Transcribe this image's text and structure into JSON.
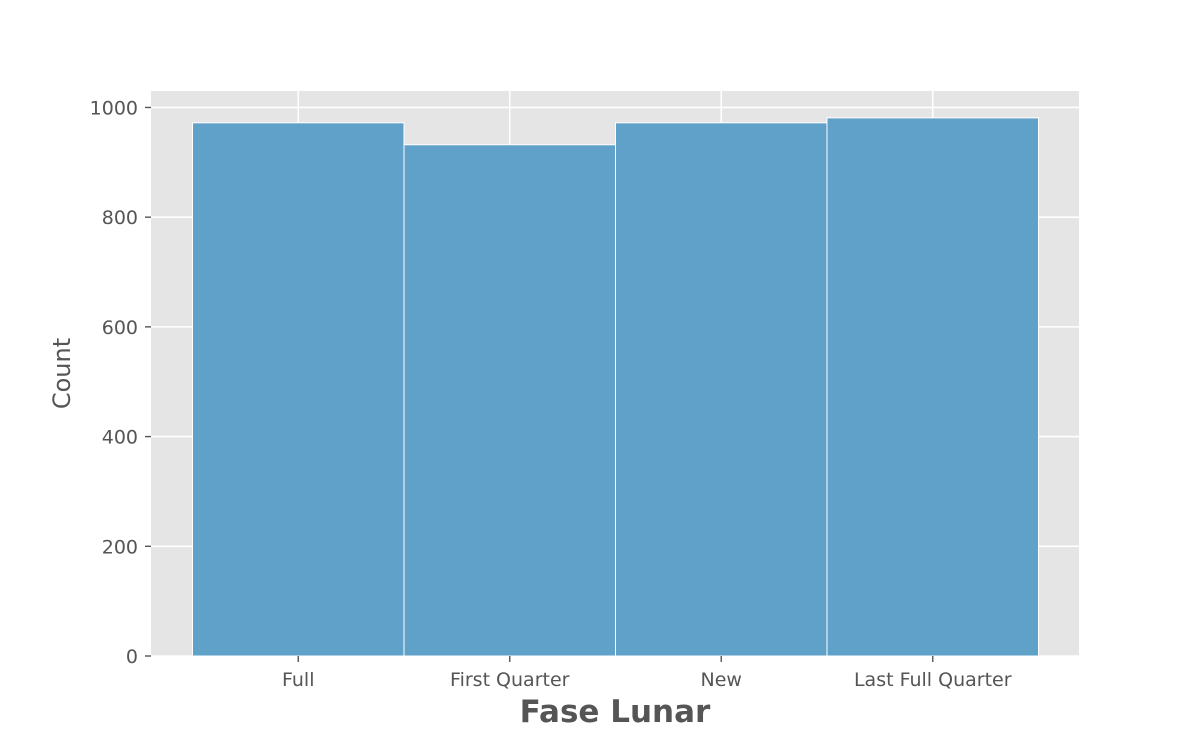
{
  "chart_data": {
    "type": "bar",
    "categories": [
      "Full",
      "First Quarter",
      "New",
      "Last Full Quarter"
    ],
    "values": [
      972,
      932,
      972,
      981
    ],
    "xlabel": "Fase Lunar",
    "ylabel": "Count",
    "ylim": [
      0,
      1030
    ],
    "yticks": [
      0,
      200,
      400,
      600,
      800,
      1000
    ],
    "grid": true,
    "colors": {
      "bar": "#5fa1c8",
      "plot_background": "#e5e5e5",
      "grid": "#ffffff",
      "text": "#555555"
    }
  }
}
